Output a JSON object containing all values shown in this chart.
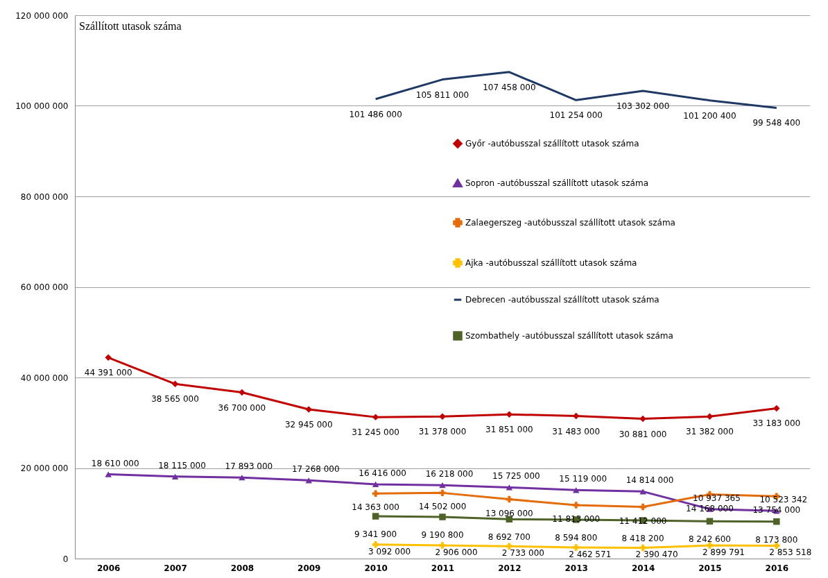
{
  "chart_data": {
    "type": "line",
    "title": "Szállított utasok száma",
    "categories": [
      "2006",
      "2007",
      "2008",
      "2009",
      "2010",
      "2011",
      "2012",
      "2013",
      "2014",
      "2015",
      "2016"
    ],
    "series": [
      {
        "name": "Győr -autóbusszal szállított utasok száma",
        "color": "#c00000",
        "marker": "diamond",
        "values": [
          44391000,
          38565000,
          36700000,
          32945000,
          31245000,
          31378000,
          31851000,
          31483000,
          30881000,
          31382000,
          33183000
        ]
      },
      {
        "name": "Sopron -autóbusszal szállított utasok száma",
        "color": "#7030a0",
        "marker": "triangle",
        "values": [
          18610000,
          18115000,
          17893000,
          17268000,
          16416000,
          16218000,
          15725000,
          15119000,
          14814000,
          10937365,
          10523342
        ]
      },
      {
        "name": "Zalaegerszeg -autóbusszal szállított utasok száma",
        "color": "#e46c0a",
        "marker": "cross",
        "values": [
          null,
          null,
          null,
          null,
          14363000,
          14502000,
          13096000,
          11813000,
          11412000,
          14168000,
          13754000
        ]
      },
      {
        "name": "Ajka -autóbusszal szállított utasok száma",
        "color": "#ffc000",
        "marker": "cross",
        "values": [
          null,
          null,
          null,
          null,
          3092000,
          2906000,
          2733000,
          2462571,
          2390470,
          2899791,
          2853518
        ]
      },
      {
        "name": "Debrecen -autóbusszal szállított utasok száma",
        "color": "#1f3864",
        "marker": "none",
        "values": [
          null,
          null,
          null,
          null,
          101486000,
          105811000,
          107458000,
          101254000,
          103302000,
          101200400,
          99548400
        ]
      },
      {
        "name": "Szombathely -autóbusszal szállított utasok száma",
        "color": "#4f6228",
        "marker": "square",
        "values": [
          null,
          null,
          null,
          null,
          9341900,
          9190800,
          8692700,
          8594800,
          8418200,
          8242600,
          8173800
        ]
      }
    ],
    "ylim": [
      0,
      120000000
    ],
    "yticks": [
      {
        "value": 0,
        "label": "0"
      },
      {
        "value": 20000000,
        "label": "20 000 000"
      },
      {
        "value": 40000000,
        "label": "40 000 000"
      },
      {
        "value": 60000000,
        "label": "60 000 000"
      },
      {
        "value": 80000000,
        "label": "80 000 000"
      },
      {
        "value": 100000000,
        "label": "100 000 000"
      },
      {
        "value": 120000000,
        "label": "120 000 000"
      }
    ],
    "grid": "y",
    "legend": "right",
    "data_labels": true,
    "line_style": "solid"
  }
}
